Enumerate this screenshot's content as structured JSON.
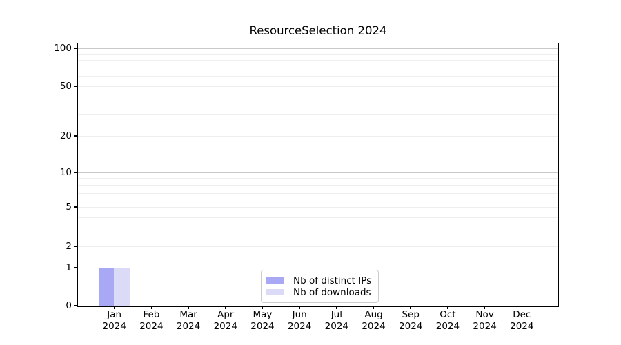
{
  "chart_data": {
    "type": "bar",
    "title": "ResourceSelection 2024",
    "xlabel": "",
    "ylabel": "",
    "categories": [
      "Jan",
      "Feb",
      "Mar",
      "Apr",
      "May",
      "Jun",
      "Jul",
      "Aug",
      "Sep",
      "Oct",
      "Nov",
      "Dec"
    ],
    "x_sublabel": "2024",
    "series": [
      {
        "name": "Nb of distinct IPs",
        "color": "#a8a8f4",
        "values": [
          1,
          0,
          0,
          0,
          0,
          0,
          0,
          0,
          0,
          0,
          0,
          0
        ]
      },
      {
        "name": "Nb of downloads",
        "color": "#dbdbf8",
        "values": [
          1,
          0,
          0,
          0,
          0,
          0,
          0,
          0,
          0,
          0,
          0,
          0
        ]
      }
    ],
    "yscale": "symlog",
    "ylim": [
      0,
      110
    ],
    "grid": "horizontal",
    "legend_position": "inside-bottom-center",
    "yticks": [
      {
        "value": 0,
        "frac": 0.0
      },
      {
        "value": 1,
        "frac": 0.1444
      },
      {
        "value": 2,
        "frac": 0.2257
      },
      {
        "value": 5,
        "frac": 0.3753
      },
      {
        "value": 10,
        "frac": 0.5066
      },
      {
        "value": 20,
        "frac": 0.6457
      },
      {
        "value": 50,
        "frac": 0.8346
      },
      {
        "value": 100,
        "frac": 0.979
      }
    ],
    "minor_gridlines": [
      {
        "value": 3,
        "frac": 0.2887
      },
      {
        "value": 4,
        "frac": 0.336
      },
      {
        "value": 6,
        "frac": 0.399
      },
      {
        "value": 7,
        "frac": 0.4278
      },
      {
        "value": 8,
        "frac": 0.4593
      },
      {
        "value": 9,
        "frac": 0.4856
      },
      {
        "value": 30,
        "frac": 0.7297
      },
      {
        "value": 40,
        "frac": 0.7874
      },
      {
        "value": 60,
        "frac": 0.874
      },
      {
        "value": 70,
        "frac": 0.9055
      },
      {
        "value": 80,
        "frac": 0.9344
      },
      {
        "value": 90,
        "frac": 0.958
      }
    ],
    "major_gridline_values": [
      1,
      10,
      100
    ],
    "colors": {
      "grid_major": "#c9c9c9",
      "grid_minor": "#eeeeee",
      "spine": "#000000",
      "legend_border": "#cccccc",
      "background": "#ffffff"
    }
  }
}
